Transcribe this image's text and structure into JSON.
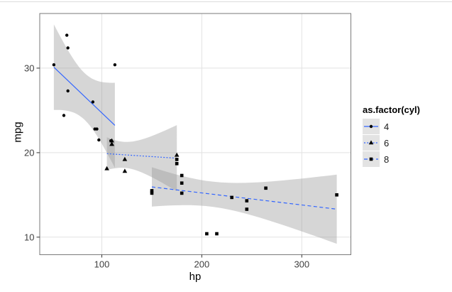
{
  "figure": {
    "background": "#ffffff",
    "top_edge_color": "#dcdcdc"
  },
  "chart_data": {
    "type": "scatter",
    "title": "",
    "xlabel": "hp",
    "ylabel": "mpg",
    "legend_title": "as.factor(cyl)",
    "legend_position": "right",
    "grid": "major-only",
    "xlim": [
      37.85,
      349.15
    ],
    "ylim": [
      7.92,
      36.47
    ],
    "x_ticks": [
      100,
      200,
      300
    ],
    "y_ticks": [
      10,
      20,
      30
    ],
    "style": {
      "line_color": "#3366FF",
      "point_color": "#000000",
      "ribbon_fill": "rgba(153,153,153,0.4)",
      "grid_color": "#E2E2E2",
      "panel_bg": "#FFFFFF",
      "panel_border_color": "#7A7A7A",
      "tick_color": "#333333",
      "tick_label_color": "#404040",
      "legend_key_fill": "#E3E3E3"
    },
    "series": [
      {
        "name": "4",
        "shape": "circle",
        "linetype": "solid",
        "dash": "",
        "points": [
          [
            93,
            22.8
          ],
          [
            62,
            24.4
          ],
          [
            95,
            22.8
          ],
          [
            66,
            32.4
          ],
          [
            52,
            30.4
          ],
          [
            65,
            33.9
          ],
          [
            97,
            21.5
          ],
          [
            66,
            27.3
          ],
          [
            91,
            26.0
          ],
          [
            113,
            30.4
          ],
          [
            109,
            21.4
          ]
        ],
        "fit": {
          "method": "lm",
          "intercept": 35.98,
          "slope": -0.11277,
          "x_from": 52,
          "x_to": 113,
          "ci": {
            "t": 2.262,
            "s": 4.051,
            "n": 11,
            "x_mean": 82.636,
            "sxx": 4382.5
          }
        }
      },
      {
        "name": "6",
        "shape": "triangle",
        "linetype": "dotted",
        "dash": "2,2.2",
        "points": [
          [
            110,
            21.0
          ],
          [
            110,
            21.0
          ],
          [
            110,
            21.4
          ],
          [
            105,
            18.1
          ],
          [
            123,
            19.2
          ],
          [
            123,
            17.8
          ],
          [
            175,
            19.7
          ]
        ],
        "fit": {
          "method": "lm",
          "intercept": 20.675,
          "slope": -0.00762,
          "x_from": 105,
          "x_to": 175,
          "ci": {
            "t": 2.571,
            "s": 1.58,
            "n": 7,
            "x_mean": 122.286,
            "sxx": 3531.4
          }
        }
      },
      {
        "name": "8",
        "shape": "square",
        "linetype": "dashed",
        "dash": "5,3.5",
        "points": [
          [
            175,
            18.7
          ],
          [
            245,
            14.3
          ],
          [
            180,
            16.4
          ],
          [
            180,
            17.3
          ],
          [
            180,
            15.2
          ],
          [
            205,
            10.4
          ],
          [
            215,
            10.4
          ],
          [
            230,
            14.7
          ],
          [
            150,
            15.5
          ],
          [
            150,
            15.2
          ],
          [
            245,
            13.3
          ],
          [
            175,
            19.2
          ],
          [
            264,
            15.8
          ],
          [
            335,
            15.0
          ]
        ],
        "fit": {
          "method": "lm",
          "intercept": 18.079,
          "slope": -0.014245,
          "x_from": 150,
          "x_to": 335,
          "ci": {
            "t": 2.179,
            "s": 2.554,
            "n": 14,
            "x_mean": 209.214,
            "sxx": 33782
          }
        }
      }
    ]
  }
}
